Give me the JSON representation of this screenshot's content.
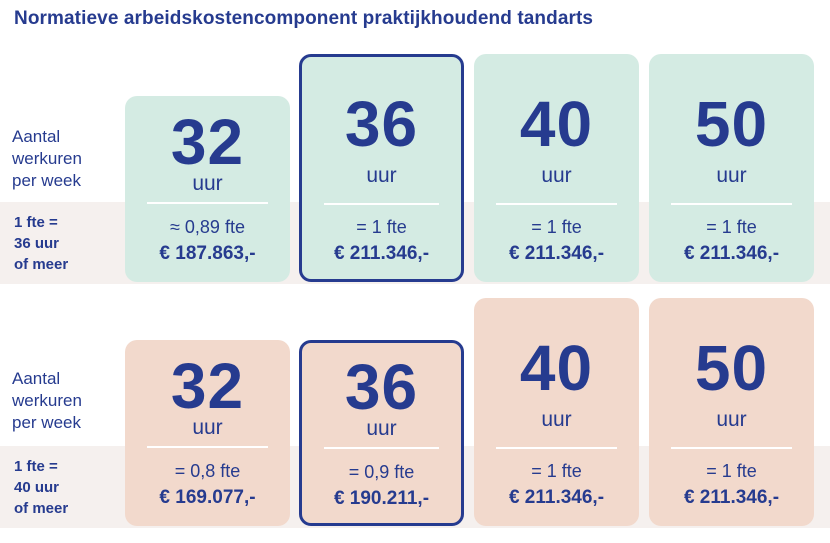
{
  "title": "Normatieve arbeidskostencomponent praktijkhoudend tandarts",
  "colors": {
    "text": "#263b8f",
    "green": "#d4ebe3",
    "peach": "#f2d9cc",
    "band": "#f5f0ee"
  },
  "sections": [
    {
      "hours_label": "Aantal\nwerkuren\nper week",
      "fte_label": "1 fte =\n36 uur\nof meer",
      "cards": [
        {
          "hours": "32",
          "unit": "uur",
          "fte": "≈ 0,89 fte",
          "amount": "€ 187.863,-"
        },
        {
          "hours": "36",
          "unit": "uur",
          "fte": "= 1 fte",
          "amount": "€ 211.346,-"
        },
        {
          "hours": "40",
          "unit": "uur",
          "fte": "= 1 fte",
          "amount": "€ 211.346,-"
        },
        {
          "hours": "50",
          "unit": "uur",
          "fte": "= 1 fte",
          "amount": "€ 211.346,-"
        }
      ]
    },
    {
      "hours_label": "Aantal\nwerkuren\nper week",
      "fte_label": "1 fte =\n40 uur\nof meer",
      "cards": [
        {
          "hours": "32",
          "unit": "uur",
          "fte": "= 0,8 fte",
          "amount": "€ 169.077,-"
        },
        {
          "hours": "36",
          "unit": "uur",
          "fte": "= 0,9 fte",
          "amount": "€ 190.211,-"
        },
        {
          "hours": "40",
          "unit": "uur",
          "fte": "= 1 fte",
          "amount": "€ 211.346,-"
        },
        {
          "hours": "50",
          "unit": "uur",
          "fte": "= 1 fte",
          "amount": "€ 211.346,-"
        }
      ]
    }
  ]
}
